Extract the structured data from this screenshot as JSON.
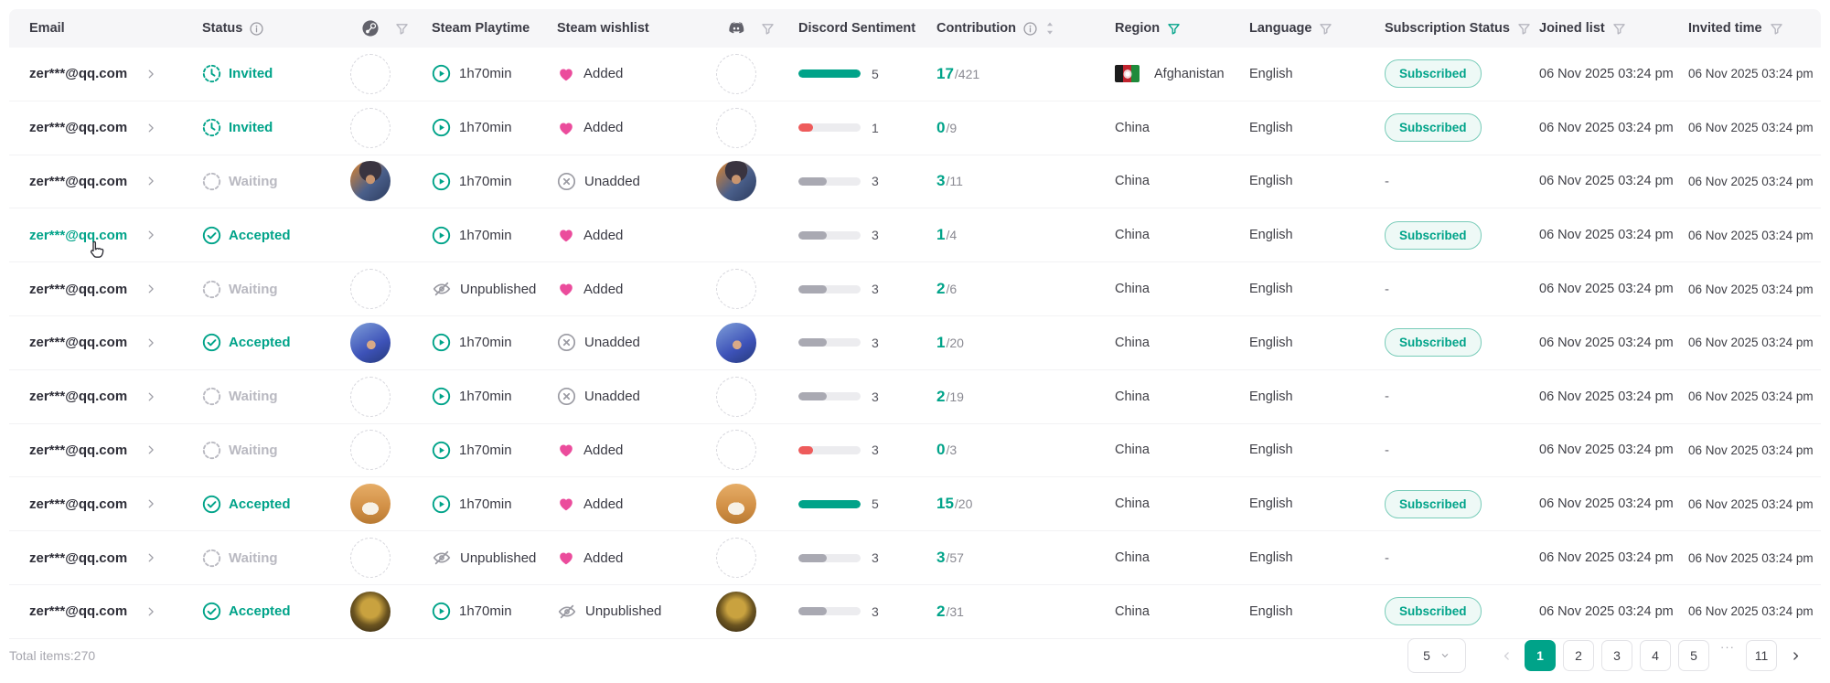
{
  "header": {
    "email": "Email",
    "status": "Status",
    "steam_playtime": "Steam Playtime",
    "steam_wishlist": "Steam wishlist",
    "discord_sentiment": "Discord Sentiment",
    "contribution": "Contribution",
    "region": "Region",
    "language": "Language",
    "subscription_status": "Subscription Status",
    "joined_list": "Joined list",
    "invited_time": "Invited time"
  },
  "colors": {
    "accent_teal": "#00A389",
    "sentiment_red": "#EE5B5B",
    "wishlist_pink": "#EB4C9C"
  },
  "table": {
    "rows": [
      {
        "email": "zer***@qq.com",
        "status": "Invited",
        "status_type": "invited",
        "avatar": null,
        "playtime": "1h70min",
        "playtime_type": "play",
        "wishlist": "Added",
        "wishlist_type": "heart",
        "sentiment": {
          "value": "5",
          "color": "teal",
          "pct": 100
        },
        "contribution": {
          "value": "17",
          "total": "/421"
        },
        "region": {
          "flag": "afghanistan",
          "name": "Afghanistan"
        },
        "language": "English",
        "subscription": "Subscribed",
        "joined": "06 Nov 2025 03:24 pm",
        "invited": "06 Nov 2025 03:24 pm",
        "email_hover": false
      },
      {
        "email": "zer***@qq.com",
        "status": "Invited",
        "status_type": "invited",
        "avatar": null,
        "playtime": "1h70min",
        "playtime_type": "play",
        "wishlist": "Added",
        "wishlist_type": "heart",
        "sentiment": {
          "value": "1",
          "color": "red",
          "pct": 24
        },
        "contribution": {
          "value": "0",
          "total": "/9"
        },
        "region": {
          "flag": null,
          "name": "China"
        },
        "language": "English",
        "subscription": "Subscribed",
        "joined": "06 Nov 2025 03:24 pm",
        "invited": "06 Nov 2025 03:24 pm",
        "email_hover": false
      },
      {
        "email": "zer***@qq.com",
        "status": "Waiting",
        "status_type": "waiting",
        "avatar": "av-dark",
        "playtime": "1h70min",
        "playtime_type": "play",
        "wishlist": "Unadded",
        "wishlist_type": "xcircle",
        "sentiment": {
          "value": "3",
          "color": "grey",
          "pct": 46
        },
        "contribution": {
          "value": "3",
          "total": "/11"
        },
        "region": {
          "flag": null,
          "name": "China"
        },
        "language": "English",
        "subscription": "-",
        "joined": "06 Nov 2025 03:24 pm",
        "invited": "06 Nov 2025 03:24 pm",
        "email_hover": false
      },
      {
        "email": "zer***@qq.com",
        "status": "Accepted",
        "status_type": "accepted",
        "avatar": "av-shades",
        "playtime": "1h70min",
        "playtime_type": "play",
        "wishlist": "Added",
        "wishlist_type": "heart",
        "sentiment": {
          "value": "3",
          "color": "grey",
          "pct": 46
        },
        "contribution": {
          "value": "1",
          "total": "/4"
        },
        "region": {
          "flag": null,
          "name": "China"
        },
        "language": "English",
        "subscription": "Subscribed",
        "joined": "06 Nov 2025 03:24 pm",
        "invited": "06 Nov 2025 03:24 pm",
        "email_hover": true
      },
      {
        "email": "zer***@qq.com",
        "status": "Waiting",
        "status_type": "waiting",
        "avatar": null,
        "playtime": "Unpublished",
        "playtime_type": "eyeslash",
        "wishlist": "Added",
        "wishlist_type": "heart",
        "sentiment": {
          "value": "3",
          "color": "grey",
          "pct": 46
        },
        "contribution": {
          "value": "2",
          "total": "/6"
        },
        "region": {
          "flag": null,
          "name": "China"
        },
        "language": "English",
        "subscription": "-",
        "joined": "06 Nov 2025 03:24 pm",
        "invited": "06 Nov 2025 03:24 pm",
        "email_hover": false
      },
      {
        "email": "zer***@qq.com",
        "status": "Accepted",
        "status_type": "accepted",
        "avatar": "av-blue",
        "playtime": "1h70min",
        "playtime_type": "play",
        "wishlist": "Unadded",
        "wishlist_type": "xcircle",
        "sentiment": {
          "value": "3",
          "color": "grey",
          "pct": 46
        },
        "contribution": {
          "value": "1",
          "total": "/20"
        },
        "region": {
          "flag": null,
          "name": "China"
        },
        "language": "English",
        "subscription": "Subscribed",
        "joined": "06 Nov 2025 03:24 pm",
        "invited": "06 Nov 2025 03:24 pm",
        "email_hover": false
      },
      {
        "email": "zer***@qq.com",
        "status": "Waiting",
        "status_type": "waiting",
        "avatar": null,
        "playtime": "1h70min",
        "playtime_type": "play",
        "wishlist": "Unadded",
        "wishlist_type": "xcircle",
        "sentiment": {
          "value": "3",
          "color": "grey",
          "pct": 46
        },
        "contribution": {
          "value": "2",
          "total": "/19"
        },
        "region": {
          "flag": null,
          "name": "China"
        },
        "language": "English",
        "subscription": "-",
        "joined": "06 Nov 2025 03:24 pm",
        "invited": "06 Nov 2025 03:24 pm",
        "email_hover": false
      },
      {
        "email": "zer***@qq.com",
        "status": "Waiting",
        "status_type": "waiting",
        "avatar": null,
        "playtime": "1h70min",
        "playtime_type": "play",
        "wishlist": "Added",
        "wishlist_type": "heart",
        "sentiment": {
          "value": "3",
          "color": "red",
          "pct": 24
        },
        "contribution": {
          "value": "0",
          "total": "/3"
        },
        "region": {
          "flag": null,
          "name": "China"
        },
        "language": "English",
        "subscription": "-",
        "joined": "06 Nov 2025 03:24 pm",
        "invited": "06 Nov 2025 03:24 pm",
        "email_hover": false
      },
      {
        "email": "zer***@qq.com",
        "status": "Accepted",
        "status_type": "accepted",
        "avatar": "av-shiba",
        "playtime": "1h70min",
        "playtime_type": "play",
        "wishlist": "Added",
        "wishlist_type": "heart",
        "sentiment": {
          "value": "5",
          "color": "teal",
          "pct": 100
        },
        "contribution": {
          "value": "15",
          "total": "/20"
        },
        "region": {
          "flag": null,
          "name": "China"
        },
        "language": "English",
        "subscription": "Subscribed",
        "joined": "06 Nov 2025 03:24 pm",
        "invited": "06 Nov 2025 03:24 pm",
        "email_hover": false
      },
      {
        "email": "zer***@qq.com",
        "status": "Waiting",
        "status_type": "waiting",
        "avatar": null,
        "playtime": "Unpublished",
        "playtime_type": "eyeslash",
        "wishlist": "Added",
        "wishlist_type": "heart",
        "sentiment": {
          "value": "3",
          "color": "grey",
          "pct": 46
        },
        "contribution": {
          "value": "3",
          "total": "/57"
        },
        "region": {
          "flag": null,
          "name": "China"
        },
        "language": "English",
        "subscription": "-",
        "joined": "06 Nov 2025 03:24 pm",
        "invited": "06 Nov 2025 03:24 pm",
        "email_hover": false
      },
      {
        "email": "zer***@qq.com",
        "status": "Accepted",
        "status_type": "accepted",
        "avatar": "av-gold",
        "playtime": "1h70min",
        "playtime_type": "play",
        "wishlist": "Unpublished",
        "wishlist_type": "eyeslash",
        "sentiment": {
          "value": "3",
          "color": "grey",
          "pct": 46
        },
        "contribution": {
          "value": "2",
          "total": "/31"
        },
        "region": {
          "flag": null,
          "name": "China"
        },
        "language": "English",
        "subscription": "Subscribed",
        "joined": "06 Nov 2025 03:24 pm",
        "invited": "06 Nov 2025 03:24 pm",
        "email_hover": false
      }
    ]
  },
  "footer": {
    "total_items": "Total items:270",
    "page_size": "5",
    "active_page": "1",
    "pages": [
      "1",
      "2",
      "3",
      "4",
      "5",
      "···",
      "11"
    ]
  }
}
